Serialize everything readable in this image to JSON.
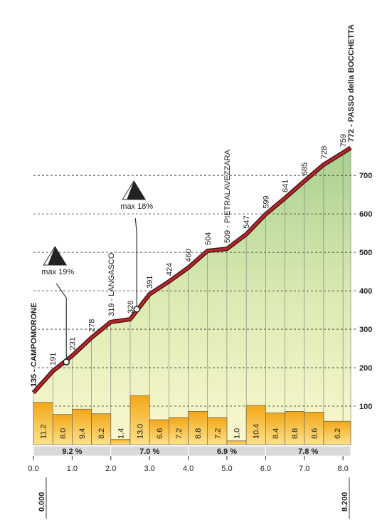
{
  "chart_data": {
    "type": "profile",
    "x": [
      0,
      0.5,
      1.0,
      1.5,
      2.0,
      2.5,
      3.0,
      3.5,
      4.0,
      4.5,
      5.0,
      5.5,
      6.0,
      6.5,
      7.0,
      7.5,
      8.0,
      8.2
    ],
    "values": [
      135,
      191,
      231,
      278,
      319,
      326,
      391,
      424,
      460,
      504,
      509,
      547,
      599,
      641,
      685,
      728,
      759,
      772
    ],
    "value_labels": [
      "135 - CAMPOMORONE",
      "191",
      "231",
      "278",
      "319 - LANGASCO",
      "326",
      "391",
      "424",
      "460",
      "504",
      "509 - PIETRALAVEZZARA",
      "547",
      "599",
      "641",
      "685",
      "728",
      "759",
      "772 - PASSO della BOCCHETTA"
    ],
    "xlim": [
      0,
      8.2
    ],
    "ylim": [
      0,
      780
    ],
    "xticks": [
      {
        "value": 0,
        "label": "0.0"
      },
      {
        "value": 1,
        "label": "1.0"
      },
      {
        "value": 2,
        "label": "2.0"
      },
      {
        "value": 3,
        "label": "3.0"
      },
      {
        "value": 4,
        "label": "4.0"
      },
      {
        "value": 5,
        "label": "5.0"
      },
      {
        "value": 6,
        "label": "6.0"
      },
      {
        "value": 7,
        "label": "7.0"
      },
      {
        "value": 8,
        "label": "8.0"
      }
    ],
    "yticks": [
      100,
      200,
      300,
      400,
      500,
      600,
      700
    ],
    "gradients": {
      "bins": [
        0,
        0.5,
        1.0,
        1.5,
        2.0,
        2.5,
        3.0,
        3.5,
        4.0,
        4.5,
        5.0,
        5.5,
        6.0,
        6.5,
        7.0,
        7.5,
        8.2
      ],
      "values": [
        11.2,
        8.0,
        9.4,
        8.2,
        1.4,
        13.0,
        6.6,
        7.2,
        8.8,
        7.2,
        1.0,
        10.4,
        8.4,
        8.8,
        8.6,
        6.2
      ],
      "value_labels": [
        "11.2",
        "8.0",
        "9.4",
        "8.2",
        "1.4",
        "13.0",
        "6.6",
        "7.2",
        "8.8",
        "7.2",
        "1.0",
        "10.4",
        "8.4",
        "8.8",
        "8.6",
        "6.2"
      ]
    },
    "segment_gradients": {
      "bins": [
        0,
        2,
        4,
        6,
        8.2
      ],
      "values": [
        9.2,
        7.0,
        6.9,
        7.8
      ],
      "value_labels": [
        "9.2 %",
        "7.0 %",
        "6.9 %",
        "7.8 %"
      ]
    },
    "annotations": [
      {
        "x": 0.85,
        "y": 215,
        "label": "max 19%"
      },
      {
        "x": 2.67,
        "y": 352,
        "label": "max 18%"
      }
    ],
    "distance_labels": [
      {
        "value": 0,
        "label": "0.000"
      },
      {
        "value": 8.2,
        "label": "8.200"
      }
    ]
  }
}
